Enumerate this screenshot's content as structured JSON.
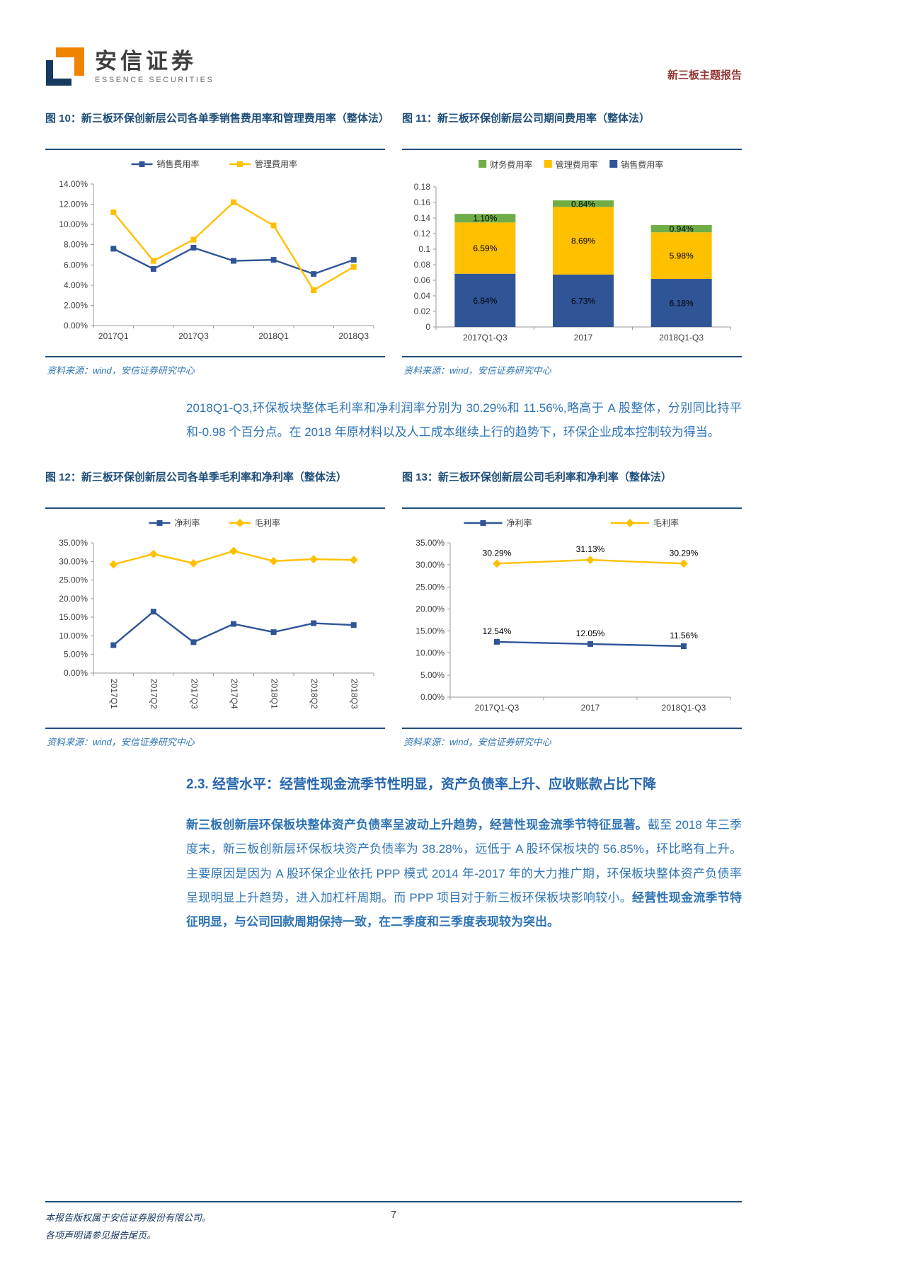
{
  "header": {
    "brand_cn": "安信证券",
    "brand_en": "ESSENCE SECURITIES",
    "report_tag": "新三板主题报告"
  },
  "source_note": "资料来源：wind，安信证券研究中心",
  "paragraph1": [
    {
      "text": "2018Q1-Q3,环保板块整体毛利率和净利润率分别为 30.29%和 11.56%,略高于 A 股整体，分别同比持平和-0.98 个百分点。在 2018 年原材料以及人工成本继续上行的趋势下，环保企业成本控制较为得当。",
      "bold": false
    }
  ],
  "section": {
    "heading": "2.3. 经营水平：经营性现金流季节性明显，资产负债率上升、应收账款占比下降"
  },
  "paragraph2": [
    {
      "text": "新三板创新层环保板块整体资产负债率呈波动上升趋势，经营性现金流季节特征显著。",
      "bold": true
    },
    {
      "text": "截至 2018 年三季度末，新三板创新层环保板块资产负债率为 38.28%，远低于 A 股环保板块的 56.85%，环比略有上升。主要原因是因为 A 股环保企业依托 PPP 模式 2014 年-2017 年的大力推广期，环保板块整体资产负债率呈现明显上升趋势，进入加杠杆周期。而 PPP 项目对于新三板环保板块影响较小。",
      "bold": false
    },
    {
      "text": "经营性现金流季节特征明显，与公司回款周期保持一致，在二季度和三季度表现较为突出。",
      "bold": true
    }
  ],
  "footer": {
    "line1": "本报告版权属于安信证券股份有限公司。",
    "line2": "各项声明请参见报告尾页。",
    "page": "7"
  },
  "chart_data": [
    {
      "id": "fig10",
      "type": "line",
      "title": "图 10：新三板环保创新层公司各单季销售费用率和管理费用率（整体法）",
      "legend_position": "top",
      "categories": [
        "2017Q1",
        "2017Q2",
        "2017Q3",
        "2017Q4",
        "2018Q1",
        "2018Q2",
        "2018Q3"
      ],
      "x_tick_labels": {
        "0": "2017Q1",
        "2": "2017Q3",
        "4": "2018Q1",
        "6": "2018Q3"
      },
      "ylim": [
        0,
        14
      ],
      "ystep": 2,
      "y_format": "pct",
      "series": [
        {
          "name": "销售费用率",
          "color": "#2F5597",
          "marker": "square",
          "values": [
            7.6,
            5.6,
            7.7,
            6.4,
            6.5,
            5.1,
            6.5
          ]
        },
        {
          "name": "管理费用率",
          "color": "#FFC000",
          "marker": "square",
          "values": [
            11.2,
            6.4,
            8.5,
            12.2,
            9.9,
            3.5,
            5.8
          ]
        }
      ]
    },
    {
      "id": "fig11",
      "type": "stacked_bar",
      "title": "图 11：新三板环保创新层公司期间费用率（整体法）",
      "legend_position": "top",
      "categories": [
        "2017Q1-Q3",
        "2017",
        "2018Q1-Q3"
      ],
      "ylim": [
        0,
        0.18
      ],
      "ystep": 0.02,
      "y_format": "num",
      "legend_order": [
        "财务费用率",
        "管理费用率",
        "销售费用率"
      ],
      "series": [
        {
          "name": "销售费用率",
          "color": "#2F5597",
          "values": [
            0.0684,
            0.0673,
            0.0618
          ],
          "labels": [
            "6.84%",
            "6.73%",
            "6.18%"
          ]
        },
        {
          "name": "管理费用率",
          "color": "#FFC000",
          "values": [
            0.0659,
            0.0869,
            0.0598
          ],
          "labels": [
            "6.59%",
            "8.69%",
            "5.98%"
          ]
        },
        {
          "name": "财务费用率",
          "color": "#70AD47",
          "values": [
            0.011,
            0.0084,
            0.0094
          ],
          "labels": [
            "1.10%",
            "0.84%",
            "0.94%"
          ]
        }
      ]
    },
    {
      "id": "fig12",
      "type": "line",
      "title": "图 12：新三板环保创新层公司各单季毛利率和净利率（整体法）",
      "legend_position": "top",
      "categories": [
        "2017Q1",
        "2017Q2",
        "2017Q3",
        "2017Q4",
        "2018Q1",
        "2018Q2",
        "2018Q3"
      ],
      "x_rotate": true,
      "ylim": [
        0,
        35
      ],
      "ystep": 5,
      "y_format": "pct",
      "series": [
        {
          "name": "净利率",
          "color": "#2F5597",
          "marker": "square",
          "values": [
            7.5,
            16.5,
            8.3,
            13.2,
            11.0,
            13.4,
            12.9
          ]
        },
        {
          "name": "毛利率",
          "color": "#FFC000",
          "marker": "diamond",
          "values": [
            29.2,
            32.0,
            29.5,
            32.8,
            30.1,
            30.6,
            30.4
          ]
        }
      ]
    },
    {
      "id": "fig13",
      "type": "line",
      "title": "图 13：新三板环保创新层公司毛利率和净利率（整体法）",
      "legend_position": "top",
      "legend_wide": true,
      "categories": [
        "2017Q1-Q3",
        "2017",
        "2018Q1-Q3"
      ],
      "ylim": [
        0,
        35
      ],
      "ystep": 5,
      "y_format": "pct",
      "series": [
        {
          "name": "净利率",
          "color": "#2F5597",
          "marker": "square",
          "values": [
            12.54,
            12.05,
            11.56
          ],
          "data_labels": [
            "12.54%",
            "12.05%",
            "11.56%"
          ]
        },
        {
          "name": "毛利率",
          "color": "#FFC000",
          "marker": "diamond",
          "values": [
            30.29,
            31.13,
            30.29
          ],
          "data_labels": [
            "30.29%",
            "31.13%",
            "30.29%"
          ]
        }
      ]
    }
  ]
}
